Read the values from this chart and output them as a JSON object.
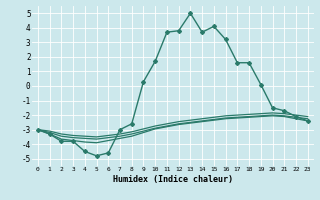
{
  "title": "",
  "xlabel": "Humidex (Indice chaleur)",
  "background_color": "#cce8ec",
  "grid_color": "#ffffff",
  "line_color": "#2a7a6a",
  "xlim": [
    -0.5,
    23.5
  ],
  "ylim": [
    -5.5,
    5.5
  ],
  "yticks": [
    -5,
    -4,
    -3,
    -2,
    -1,
    0,
    1,
    2,
    3,
    4,
    5
  ],
  "xticks": [
    0,
    1,
    2,
    3,
    4,
    5,
    6,
    7,
    8,
    9,
    10,
    11,
    12,
    13,
    14,
    15,
    16,
    17,
    18,
    19,
    20,
    21,
    22,
    23
  ],
  "series": [
    {
      "x": [
        0,
        1,
        2,
        3,
        4,
        5,
        6,
        7,
        8,
        9,
        10,
        11,
        12,
        13,
        14,
        15,
        16,
        17,
        18,
        19,
        20,
        21,
        22,
        23
      ],
      "y": [
        -3.0,
        -3.3,
        -3.8,
        -3.8,
        -4.5,
        -4.8,
        -4.6,
        -3.0,
        -2.6,
        0.3,
        1.7,
        3.7,
        3.8,
        5.0,
        3.7,
        4.1,
        3.2,
        1.6,
        1.6,
        0.1,
        -1.5,
        -1.7,
        -2.1,
        -2.4
      ],
      "marker": "D",
      "markersize": 2.0,
      "linewidth": 1.0
    },
    {
      "x": [
        0,
        1,
        2,
        3,
        4,
        5,
        6,
        7,
        8,
        9,
        10,
        11,
        12,
        13,
        14,
        15,
        16,
        17,
        18,
        19,
        20,
        21,
        22,
        23
      ],
      "y": [
        -3.0,
        -3.2,
        -3.45,
        -3.55,
        -3.6,
        -3.65,
        -3.55,
        -3.45,
        -3.3,
        -3.1,
        -2.9,
        -2.75,
        -2.6,
        -2.5,
        -2.4,
        -2.3,
        -2.2,
        -2.15,
        -2.1,
        -2.05,
        -2.0,
        -2.05,
        -2.15,
        -2.25
      ],
      "marker": null,
      "markersize": 0,
      "linewidth": 0.9
    },
    {
      "x": [
        0,
        1,
        2,
        3,
        4,
        5,
        6,
        7,
        8,
        9,
        10,
        11,
        12,
        13,
        14,
        15,
        16,
        17,
        18,
        19,
        20,
        21,
        22,
        23
      ],
      "y": [
        -3.0,
        -3.3,
        -3.65,
        -3.75,
        -3.85,
        -3.9,
        -3.75,
        -3.6,
        -3.45,
        -3.2,
        -2.95,
        -2.8,
        -2.65,
        -2.55,
        -2.45,
        -2.35,
        -2.25,
        -2.2,
        -2.15,
        -2.1,
        -2.05,
        -2.1,
        -2.25,
        -2.4
      ],
      "marker": null,
      "markersize": 0,
      "linewidth": 0.9
    },
    {
      "x": [
        0,
        1,
        2,
        3,
        4,
        5,
        6,
        7,
        8,
        9,
        10,
        11,
        12,
        13,
        14,
        15,
        16,
        17,
        18,
        19,
        20,
        21,
        22,
        23
      ],
      "y": [
        -3.0,
        -3.1,
        -3.3,
        -3.4,
        -3.45,
        -3.5,
        -3.4,
        -3.3,
        -3.15,
        -2.95,
        -2.75,
        -2.6,
        -2.45,
        -2.35,
        -2.25,
        -2.15,
        -2.05,
        -2.0,
        -1.95,
        -1.9,
        -1.85,
        -1.9,
        -2.0,
        -2.1
      ],
      "marker": null,
      "markersize": 0,
      "linewidth": 0.9
    }
  ]
}
